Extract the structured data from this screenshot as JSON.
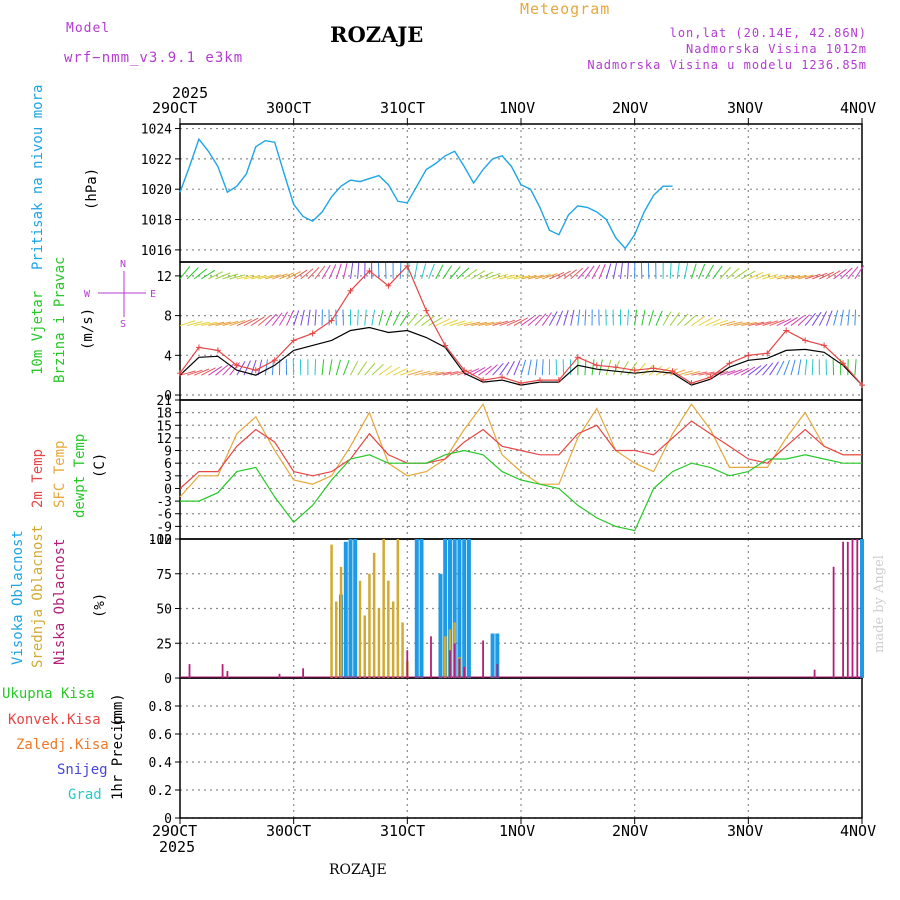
{
  "header": {
    "model_label": "Model",
    "model_name": "wrf−nmm_v3.9.1  e3km",
    "title": "ROZAJE",
    "meteogram_label": "Meteogram",
    "lonlat": "lon,lat (20.14E, 42.86N)",
    "altitude": "Nadmorska Visina 1012m",
    "model_altitude": "Nadmorska Visina u modelu 1236.85m",
    "year_top": "2025",
    "year_bottom": "2025",
    "footer_station": "ROZAJE",
    "credit": "made by Angel"
  },
  "x_axis": {
    "labels": [
      "29OCT",
      "30OCT",
      "31OCT",
      "1NOV",
      "2NOV",
      "3NOV",
      "4NOV"
    ]
  },
  "panels": {
    "pressure": {
      "ylabel": "Pritisak na nivou mora",
      "unit": "(hPa)"
    },
    "wind": {
      "ylabel1": "10m Vjetar",
      "ylabel2": "Brzina i Pravac",
      "unit": "(m/s)",
      "compass_n": "N",
      "compass_s": "S",
      "compass_w": "W",
      "compass_e": "E"
    },
    "temp": {
      "ylabel1": "2m Temp",
      "ylabel2": "SFC Temp",
      "ylabel3": "dewpt Temp",
      "unit": "(C)"
    },
    "cloud": {
      "ylabel1": "Visoka Oblacnost",
      "ylabel2": "Srednja Oblacnost",
      "ylabel3": "Niska Oblacnost",
      "unit": "(%)"
    },
    "precip": {
      "ylabel": "1hr Precip",
      "unit": "(mm)",
      "legend": [
        "Ukupna Kisa",
        "Konvek.Kisa",
        "Zaledj.Kisa",
        "Snijeg",
        "Grad"
      ]
    }
  },
  "colors": {
    "pressure": "#1ea5e6",
    "temp2m": "#e64646",
    "sfc": "#e6a83c",
    "dewpt": "#28c828",
    "gust": "#e64646",
    "wind": "#000000",
    "high_cloud": "#1e9be6",
    "mid_cloud": "#d2aa32",
    "low_cloud": "#b41e78",
    "leg_total": "#28c828",
    "leg_conv": "#e64646",
    "leg_frz": "#f07828",
    "leg_snow": "#4646dc",
    "leg_hail": "#28c8c8",
    "purple": "#b43cd2"
  },
  "chart_data": [
    {
      "type": "line",
      "title": "Pritisak na nivou mora",
      "ylabel": "hPa",
      "ylim": [
        1015.2,
        1024.3
      ],
      "yticks": [
        1016,
        1018,
        1020,
        1022,
        1024
      ],
      "x_hours": [
        0,
        2,
        4,
        6,
        8,
        10,
        12,
        14,
        16,
        18,
        20,
        22,
        24,
        26,
        28,
        30,
        32,
        34,
        36,
        38,
        40,
        42,
        44,
        46,
        48,
        50,
        52,
        54,
        56,
        58,
        60,
        62,
        64,
        66,
        68,
        70,
        72,
        74,
        76,
        78,
        80,
        82,
        84,
        86,
        88,
        90,
        92,
        94,
        96,
        98,
        100,
        102,
        104,
        106,
        108,
        110,
        112,
        114,
        116,
        118,
        120,
        122,
        124,
        126,
        128,
        130,
        132,
        134,
        136,
        138,
        140,
        142,
        144
      ],
      "series": [
        {
          "name": "pressure",
          "values": [
            1019.8,
            1021.5,
            1023.3,
            1022.5,
            1021.5,
            1019.8,
            1020.2,
            1021.0,
            1022.8,
            1023.2,
            1023.1,
            1021.0,
            1019.0,
            1018.2,
            1017.9,
            1018.5,
            1019.5,
            1020.2,
            1020.6,
            1020.5,
            1020.7,
            1020.9,
            1020.3,
            1019.2,
            1019.1,
            1020.2,
            1021.3,
            1021.7,
            1022.2,
            1022.5,
            1021.5,
            1020.4,
            1021.3,
            1022.0,
            1022.2,
            1021.5,
            1020.3,
            1020.0,
            1018.8,
            1017.3,
            1017.0,
            1018.3,
            1018.9,
            1018.8,
            1018.5,
            1018.0,
            1016.8,
            1016.1,
            1017.0,
            1018.5,
            1019.6,
            1020.2,
            1020.2
          ]
        }
      ]
    },
    {
      "type": "line",
      "title": "10m Vjetar Brzina i Pravac",
      "ylabel": "m/s",
      "ylim": [
        -0.5,
        13.4
      ],
      "yticks": [
        0,
        4,
        8,
        12
      ],
      "x_hours": [
        0,
        4,
        8,
        12,
        16,
        20,
        24,
        28,
        32,
        36,
        40,
        44,
        48,
        52,
        56,
        60,
        64,
        68,
        72,
        76,
        80,
        84,
        88,
        92,
        96,
        100,
        104,
        108,
        112,
        116,
        120,
        124,
        128,
        132,
        136,
        140,
        144
      ],
      "series": [
        {
          "name": "gust",
          "values": [
            2.2,
            4.8,
            4.5,
            3.0,
            2.5,
            3.5,
            5.5,
            6.2,
            7.5,
            10.5,
            12.5,
            11.0,
            13.0,
            8.5,
            5.0,
            2.5,
            1.5,
            1.8,
            1.2,
            1.5,
            1.5,
            3.8,
            3.0,
            2.8,
            2.5,
            2.7,
            2.4,
            1.2,
            1.8,
            3.2,
            4.0,
            4.2,
            6.5,
            5.5,
            5.0,
            3.2,
            1.0
          ]
        },
        {
          "name": "wind",
          "values": [
            2.0,
            3.8,
            3.9,
            2.5,
            2.0,
            3.0,
            4.5,
            5.0,
            5.5,
            6.5,
            6.8,
            6.3,
            6.5,
            5.8,
            4.8,
            2.2,
            1.3,
            1.5,
            1.0,
            1.3,
            1.3,
            3.0,
            2.6,
            2.4,
            2.2,
            2.4,
            2.2,
            1.0,
            1.6,
            2.8,
            3.5,
            3.7,
            4.5,
            4.6,
            4.3,
            3.0,
            1.0
          ]
        }
      ]
    },
    {
      "type": "line",
      "title": "2m Temp / SFC Temp / dewpt Temp",
      "ylabel": "C",
      "ylim": [
        -12,
        21
      ],
      "yticks": [
        21,
        18,
        15,
        12,
        9,
        6,
        3,
        0,
        -3,
        -6,
        -9,
        -12
      ],
      "x_hours": [
        0,
        4,
        8,
        12,
        16,
        20,
        24,
        28,
        32,
        36,
        40,
        44,
        48,
        52,
        56,
        60,
        64,
        68,
        72,
        76,
        80,
        84,
        88,
        92,
        96,
        100,
        104,
        108,
        112,
        116,
        120,
        124,
        128,
        132,
        136,
        140,
        144
      ],
      "series": [
        {
          "name": "2m Temp",
          "values": [
            0,
            4,
            4,
            10,
            14,
            11,
            4,
            3,
            4,
            7,
            13,
            8,
            6,
            6,
            7,
            11,
            14,
            10,
            9,
            8,
            8,
            13,
            15,
            9,
            9,
            8,
            12,
            16,
            13,
            10,
            7,
            6,
            10,
            14,
            10,
            8,
            8
          ]
        },
        {
          "name": "SFC Temp",
          "values": [
            -2,
            3,
            3,
            13,
            17,
            9,
            2,
            1,
            3,
            10,
            18,
            6,
            3,
            4,
            7,
            14,
            20,
            8,
            4,
            1,
            1,
            12,
            19,
            9,
            6,
            4,
            13,
            20,
            14,
            5,
            5,
            5,
            12,
            18,
            10,
            8,
            8
          ]
        },
        {
          "name": "dewpt Temp",
          "values": [
            -3,
            -3,
            -1,
            4,
            5,
            -2,
            -8,
            -4,
            2,
            7,
            8,
            6,
            6,
            6,
            8,
            9,
            8,
            4,
            2,
            1,
            0,
            -4,
            -7,
            -9,
            -10,
            0,
            4,
            6,
            5,
            3,
            4,
            7,
            7,
            8,
            7,
            6,
            6
          ]
        }
      ]
    },
    {
      "type": "bar",
      "title": "Visoka / Srednja / Niska Oblacnost",
      "ylabel": "%",
      "ylim": [
        0,
        100
      ],
      "yticks": [
        0,
        25,
        50,
        75,
        100
      ],
      "series": [
        {
          "name": "Visoka Oblacnost",
          "x_hours": [
            34,
            35,
            36,
            37,
            50,
            51,
            55,
            56,
            57,
            58,
            59,
            60,
            61,
            66,
            67,
            144
          ],
          "values": [
            60,
            98,
            100,
            100,
            100,
            100,
            75,
            100,
            100,
            100,
            100,
            100,
            100,
            32,
            32,
            100
          ]
        },
        {
          "name": "Srednja Oblacnost",
          "x_hours": [
            32,
            33,
            34,
            38,
            39,
            40,
            41,
            42,
            43,
            44,
            45,
            46,
            47,
            48,
            56,
            57,
            58,
            59
          ],
          "values": [
            96,
            55,
            80,
            70,
            45,
            75,
            90,
            50,
            100,
            70,
            55,
            100,
            40,
            12,
            30,
            35,
            40,
            15
          ]
        },
        {
          "name": "Niska Oblacnost",
          "x_hours": [
            2,
            9,
            10,
            21,
            26,
            48,
            53,
            57,
            58,
            59,
            60,
            64,
            67,
            134,
            138,
            140,
            141,
            142,
            143
          ],
          "values": [
            10,
            10,
            5,
            3,
            7,
            20,
            30,
            20,
            25,
            14,
            8,
            27,
            10,
            6,
            80,
            98,
            98,
            100,
            100
          ]
        }
      ]
    },
    {
      "type": "line",
      "title": "1hr Precip",
      "ylabel": "mm",
      "ylim": [
        0,
        1.0
      ],
      "yticks": [
        0,
        0.2,
        0.4,
        0.6,
        0.8
      ],
      "series": []
    }
  ]
}
